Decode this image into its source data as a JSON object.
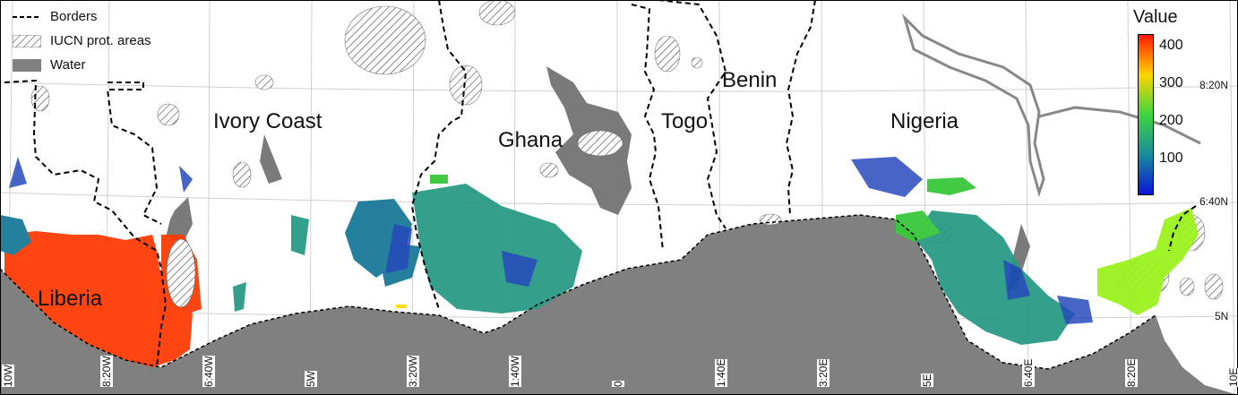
{
  "legend": {
    "borders_label": "Borders",
    "protected_label": "IUCN prot. areas",
    "water_label": "Water"
  },
  "color_scale": {
    "title": "Value",
    "ticks": [
      "400",
      "300",
      "200",
      "100"
    ],
    "colors": [
      "#ff2a00",
      "#ffd400",
      "#22c422",
      "#2a9a9a",
      "#0a1fd0"
    ]
  },
  "countries": [
    "Ivory Coast",
    "Ghana",
    "Togo",
    "Benin",
    "Nigeria",
    "Liberia"
  ],
  "lat_labels": [
    "8:20N",
    "6:40N",
    "5N"
  ],
  "lon_labels": [
    "10W",
    "8:20W",
    "6:40W",
    "5W",
    "3:20W",
    "1:40W",
    "0",
    "1:40E",
    "3:20E",
    "5E",
    "6:40E",
    "8:20E",
    "10E"
  ],
  "colors": {
    "sea": "#808080",
    "water": "#808080",
    "liberia_fill": "#ff3c05",
    "border": "#000000"
  }
}
